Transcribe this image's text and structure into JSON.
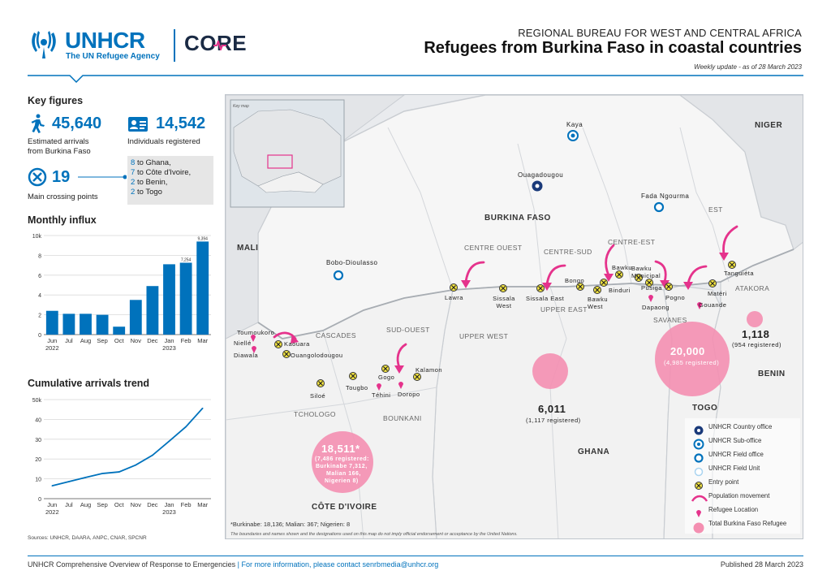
{
  "header": {
    "logo_unhcr": "UNHCR",
    "logo_tagline": "The UN Refugee Agency",
    "logo_core": "CORE",
    "bureau": "REGIONAL BUREAU FOR WEST AND CENTRAL AFRICA",
    "title": "Refugees from Burkina Faso in coastal countries",
    "update": "Weekly update - as of 28 March 2023",
    "accent": "#0072bc"
  },
  "key_figures": {
    "title": "Key figures",
    "arrivals_value": "45,640",
    "arrivals_label_1": "Estimated arrivals",
    "arrivals_label_2": "from Burkina Faso",
    "registered_value": "14,542",
    "registered_label": "Individuals registered",
    "crossing_value": "19",
    "crossing_label": "Main crossing points",
    "crossings": [
      {
        "n": "8",
        "txt": "to Ghana,"
      },
      {
        "n": "7",
        "txt": "to Côte d'Ivoire,"
      },
      {
        "n": "2",
        "txt": "to Benin,"
      },
      {
        "n": "2",
        "txt": "to Togo"
      }
    ]
  },
  "chart_data": [
    {
      "type": "bar",
      "title": "Monthly influx",
      "categories": [
        "Jun",
        "Jul",
        "Aug",
        "Sep",
        "Oct",
        "Nov",
        "Dec",
        "Jan",
        "Feb",
        "Mar"
      ],
      "year_labels": {
        "Jun": "2022",
        "Jan": "2023"
      },
      "values": [
        2400,
        2100,
        2100,
        2000,
        800,
        3500,
        4900,
        7100,
        7254,
        9394
      ],
      "data_labels": {
        "Feb": "7,254",
        "Mar": "9,394"
      },
      "yticks": [
        "0",
        "2",
        "4",
        "6",
        "8",
        "10k"
      ],
      "ylim": [
        0,
        10000
      ],
      "color": "#0072bc",
      "grid": true
    },
    {
      "type": "line",
      "title": "Cumulative arrivals trend",
      "categories": [
        "Jun",
        "Jul",
        "Aug",
        "Sep",
        "Oct",
        "Nov",
        "Dec",
        "Jan",
        "Feb",
        "Mar"
      ],
      "year_labels": {
        "Jun": "2022",
        "Jan": "2023"
      },
      "values": [
        6500,
        8600,
        10700,
        12700,
        13500,
        17000,
        21900,
        29000,
        36300,
        45640
      ],
      "yticks": [
        "0",
        "10",
        "20",
        "30",
        "40",
        "50k"
      ],
      "ylim": [
        0,
        50000
      ],
      "color": "#0072bc",
      "grid": true
    }
  ],
  "sources": "Sources: UNHCR, DAARA, ANPC, CNAR, SPCNR",
  "map": {
    "inset_label": "Key map",
    "countries": [
      "MALI",
      "NIGER",
      "BURKINA FASO",
      "GHANA",
      "TOGO",
      "BENIN",
      "CÔTE D'IVOIRE"
    ],
    "regions": [
      "CENTRE OUEST",
      "CENTRE-SUD",
      "CENTRE-EST",
      "EST",
      "CASCADES",
      "SUD-OUEST",
      "UPPER WEST",
      "UPPER EAST",
      "SAVANES",
      "ATAKORA",
      "TCHOLOGO",
      "BOUNKANI"
    ],
    "cities": {
      "kaya": "Kaya",
      "ouaga": "Ouagadougou",
      "fada": "Fada Ngourma",
      "bobo": "Bobo-Dioulasso"
    },
    "points": [
      "Lawra",
      "Sissala West",
      "Sissala East",
      "Bongo",
      "Bawku West",
      "Bawku",
      "Binduri",
      "Bawku Municipal",
      "Pusiga",
      "Pogno",
      "Dapaong",
      "Matéri",
      "Tanguiéta",
      "Gouande",
      "Toumoukoro",
      "Niellé",
      "Kaouara",
      "Diawala",
      "Ouangolodougou",
      "Siloé",
      "Tougbo",
      "Gogo",
      "Kalamon",
      "Téhini",
      "Doropo"
    ],
    "bubbles": {
      "ghana_value": "6,011",
      "ghana_sub": "(1,117 registered)",
      "togo_value": "20,000",
      "togo_sub": "(4,985 registered)",
      "benin_value": "1,118",
      "benin_sub": "(954 registered)",
      "civ_value": "18,511*",
      "civ_sub_1": "(7,486 registered:",
      "civ_sub_2": "Burkinabe 7,312,",
      "civ_sub_3": "Malian 166,",
      "civ_sub_4": "Nigerien 8)"
    },
    "footnote": "*Burkinabe: 18,136; Malian: 367; Nigerien: 8",
    "disclaimer": "The boundaries and names shown and the designations used on this map do not imply official endorsement or acceptance by the United Nations.",
    "legend": [
      {
        "icon": "country-office-icon",
        "label": "UNHCR Country office"
      },
      {
        "icon": "sub-office-icon",
        "label": "UNHCR Sub-office"
      },
      {
        "icon": "field-office-icon",
        "label": "UNHCR Field office"
      },
      {
        "icon": "field-unit-icon",
        "label": "UNHCR Field Unit"
      },
      {
        "icon": "entry-point-icon",
        "label": "Entry point"
      },
      {
        "icon": "population-movement-icon",
        "label": "Population movement"
      },
      {
        "icon": "refugee-location-icon",
        "label": "Refugee Location"
      },
      {
        "icon": "total-refugee-icon",
        "label": "Total Burkina Faso Refugee"
      }
    ],
    "colors": {
      "bubble": "#f48fb1",
      "arrow": "#e5338c",
      "refugee": "#e5338c"
    }
  },
  "footer": {
    "left": "UNHCR Comprehensive Overview of Response to Emergencies",
    "sep": "|",
    "contact": "For more information, please contact senrbmedia@unhcr.org",
    "published": "Published 28 March 2023"
  }
}
